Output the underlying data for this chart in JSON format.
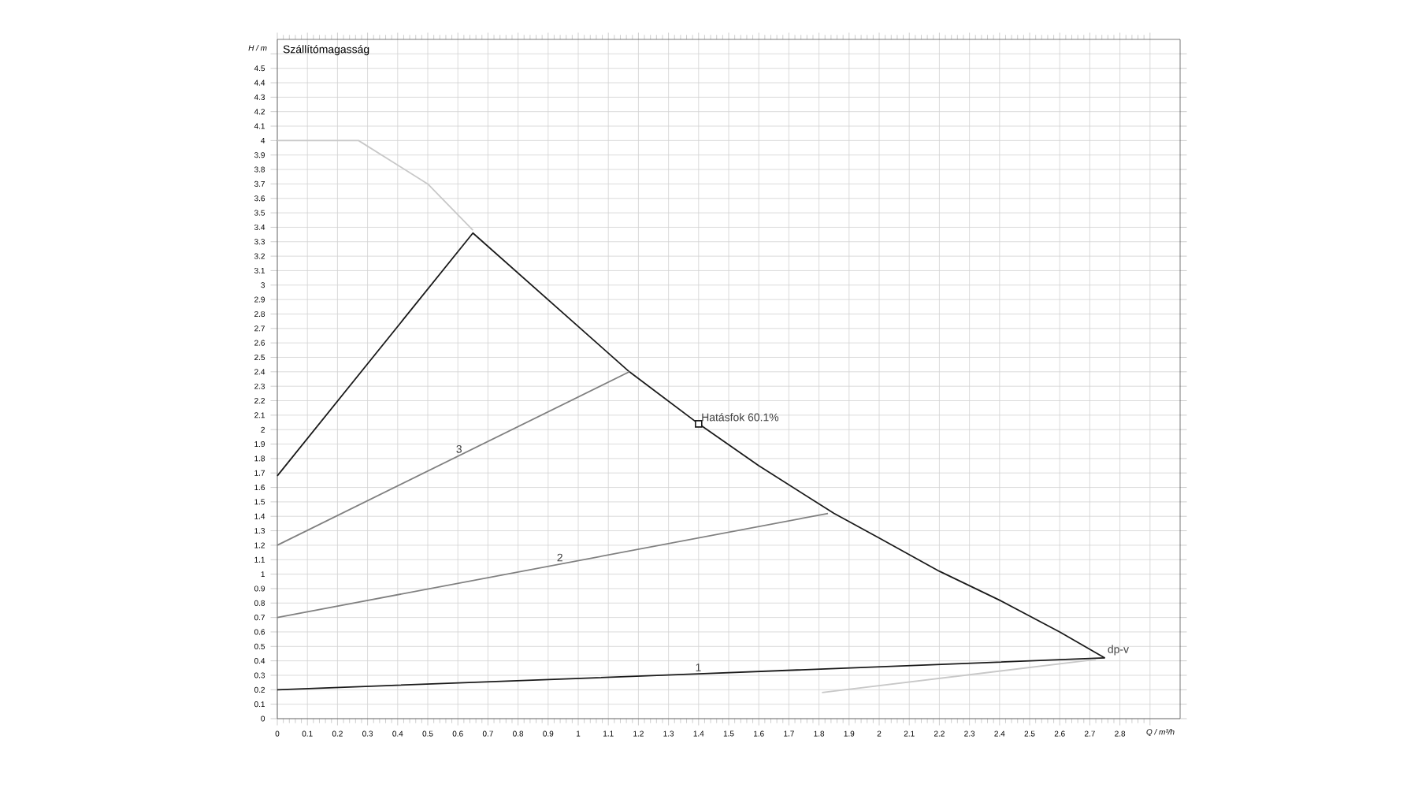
{
  "chart_data": {
    "type": "line",
    "title": "Szállítómagasság",
    "xlabel": "Q / m³/h",
    "ylabel": "H / m",
    "xlim": [
      0,
      3.0
    ],
    "ylim": [
      0,
      4.7
    ],
    "xticks": [
      0,
      0.1,
      0.2,
      0.3,
      0.4,
      0.5,
      0.6,
      0.7,
      0.8,
      0.9,
      1,
      1.1,
      1.2,
      1.3,
      1.4,
      1.5,
      1.6,
      1.7,
      1.8,
      1.9,
      2,
      2.1,
      2.2,
      2.3,
      2.4,
      2.5,
      2.6,
      2.7,
      2.8,
      {
        "value": 2.9,
        "label": null
      }
    ],
    "yticks": [
      0,
      0.1,
      0.2,
      0.3,
      0.4,
      0.5,
      0.6,
      0.7,
      0.8,
      0.9,
      1,
      1.1,
      1.2,
      1.3,
      1.4,
      1.5,
      1.6,
      1.7,
      1.8,
      1.9,
      2,
      2.1,
      2.2,
      2.3,
      2.4,
      2.5,
      2.6,
      2.7,
      2.8,
      2.9,
      3,
      3.1,
      3.2,
      3.3,
      3.4,
      3.5,
      3.6,
      3.7,
      3.8,
      3.9,
      4,
      4.1,
      4.2,
      4.3,
      4.4,
      4.5,
      {
        "value": 4.6,
        "label": null
      }
    ],
    "grid": true,
    "marker": "none",
    "line_style": "solid",
    "series": [
      {
        "color": "#c8c8c8",
        "x": [
          0,
          0.27,
          0.5,
          0.65
        ],
        "values": [
          4.0,
          4.0,
          3.7,
          3.38
        ]
      },
      {
        "color": "#1a1a1a",
        "x": [
          0,
          0.65,
          1.17,
          1.4,
          1.6,
          1.85,
          2.0,
          2.2,
          2.4,
          2.6,
          2.75
        ],
        "values": [
          1.68,
          3.36,
          2.4,
          2.04,
          1.75,
          1.42,
          1.25,
          1.02,
          0.82,
          0.6,
          0.42
        ]
      },
      {
        "color": "#1a1a1a",
        "x": [
          0,
          1.4,
          2.75
        ],
        "values": [
          0.2,
          0.31,
          0.42
        ]
      },
      {
        "color": "#808080",
        "x": [
          0,
          1.17
        ],
        "values": [
          1.2,
          2.4
        ]
      },
      {
        "color": "#808080",
        "x": [
          0,
          1.83
        ],
        "values": [
          0.7,
          1.42
        ]
      },
      {
        "color": "#c8c8c8",
        "x": [
          1.81,
          2.72
        ],
        "values": [
          0.18,
          0.41
        ]
      },
      {
        "type": "scatter",
        "marker": "square",
        "color": "#1a1a1a",
        "x": [
          1.4
        ],
        "values": [
          2.04
        ]
      }
    ],
    "annotations": [
      {
        "text": "Hatásfok  60.1%",
        "x": 1.4,
        "y": 2.04
      },
      {
        "text": "1",
        "x": 1.38,
        "y": 0.31
      },
      {
        "text": "2",
        "x": 0.92,
        "y": 1.07
      },
      {
        "text": "3",
        "x": 0.585,
        "y": 1.82
      },
      {
        "text": "dp-v",
        "x": 2.75,
        "y": 0.42
      }
    ]
  }
}
